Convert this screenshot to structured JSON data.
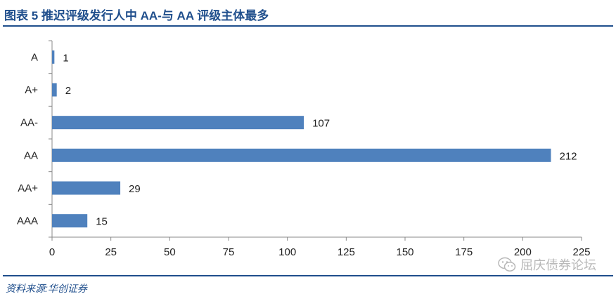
{
  "header": {
    "title": "图表 5   推迟评级发行人中 AA-与 AA 评级主体最多"
  },
  "chart_data": {
    "type": "bar",
    "orientation": "horizontal",
    "categories": [
      "A",
      "A+",
      "AA-",
      "AA",
      "AA+",
      "AAA"
    ],
    "values": [
      1,
      2,
      107,
      212,
      29,
      15
    ],
    "xlim": [
      0,
      225
    ],
    "xticks": [
      0,
      25,
      50,
      75,
      100,
      125,
      150,
      175,
      200,
      225
    ],
    "bar_color": "#4f81bd",
    "grid": false,
    "legend": "none"
  },
  "footer": {
    "source": "资料来源:华创证券"
  },
  "watermark": {
    "text": "屈庆债券论坛",
    "icon": "wechat-icon"
  }
}
